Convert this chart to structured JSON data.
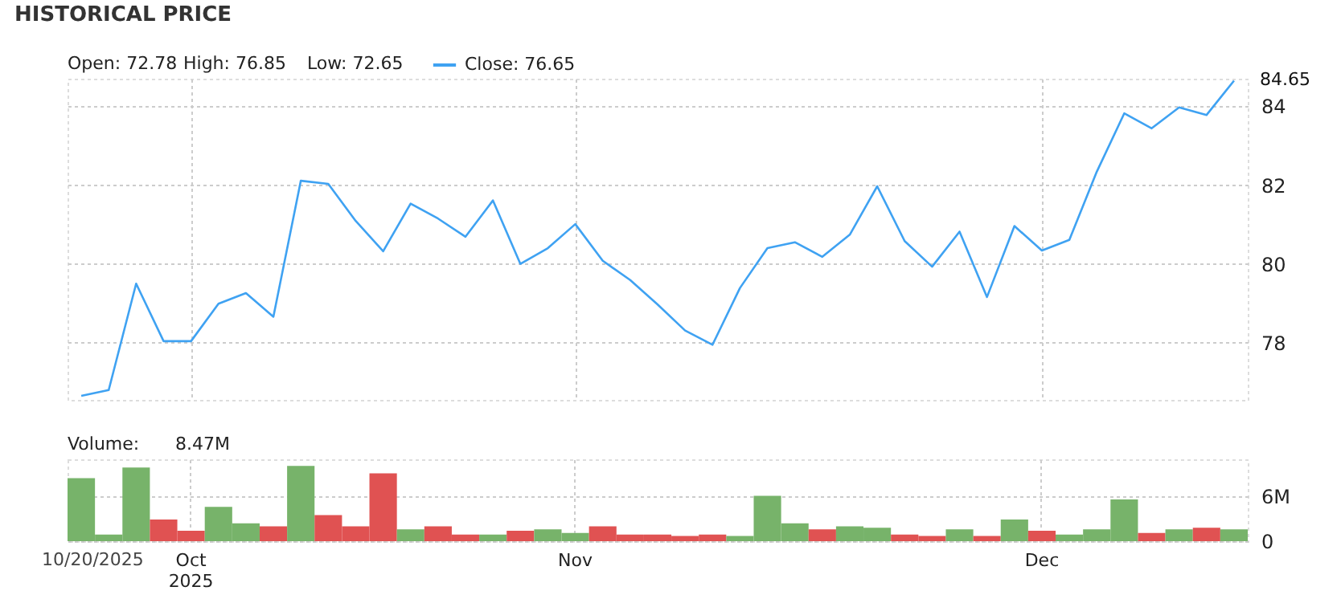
{
  "chart_data": [
    {
      "type": "line",
      "title": "HISTORICAL PRICE",
      "annotations": [
        "Open: 72.78",
        "High: 76.85",
        "Low: 72.65"
      ],
      "categories": [
        null,
        null,
        null,
        null,
        null,
        null,
        null,
        null,
        null,
        null,
        null,
        null,
        null,
        null,
        null,
        null,
        null,
        null,
        null,
        null,
        null,
        null,
        null,
        null,
        null,
        null,
        null,
        null,
        null,
        null,
        null,
        null,
        null,
        null,
        null,
        null,
        null,
        null,
        null,
        null,
        null,
        null,
        null
      ],
      "series": [
        {
          "name": "Close: 76.65",
          "color": "#3fa2f2",
          "values": [
            76.65,
            76.8,
            79.5,
            78.04,
            78.04,
            78.99,
            79.26,
            78.66,
            82.11,
            82.03,
            81.09,
            80.32,
            81.53,
            81.15,
            80.69,
            81.61,
            80.0,
            80.4,
            81.01,
            80.08,
            79.59,
            78.97,
            78.31,
            77.95,
            79.39,
            80.4,
            80.55,
            80.18,
            80.74,
            81.97,
            80.58,
            79.93,
            80.82,
            79.16,
            80.96,
            80.34,
            80.61,
            82.34,
            83.82,
            83.44,
            83.97,
            83.78,
            84.65
          ],
          "value_labels": [
            null,
            null,
            null,
            null,
            null,
            null,
            null,
            null,
            null,
            null,
            null,
            null,
            null,
            null,
            null,
            null,
            null,
            null,
            null,
            null,
            null,
            null,
            null,
            null,
            null,
            null,
            null,
            null,
            null,
            null,
            null,
            null,
            null,
            null,
            null,
            null,
            null,
            null,
            null,
            null,
            null,
            null,
            "84.65"
          ]
        }
      ],
      "ylim": [
        76.55,
        84.7
      ],
      "yticks": [
        78,
        80,
        82,
        84
      ],
      "grid": true,
      "legend": "top left",
      "tick_labels": "y",
      "line_style": "solid"
    },
    {
      "type": "bar",
      "annotations": [
        "Volume:",
        "8.47M",
        "10/20/2025"
      ],
      "categories": [
        null,
        null,
        null,
        null,
        "Oct 2025",
        null,
        null,
        null,
        null,
        null,
        null,
        null,
        null,
        null,
        null,
        null,
        null,
        null,
        "Nov",
        null,
        null,
        null,
        null,
        null,
        null,
        null,
        null,
        null,
        null,
        null,
        null,
        null,
        null,
        null,
        null,
        "Dec",
        null,
        null,
        null,
        null,
        null,
        null,
        null
      ],
      "values": [
        8.47,
        0.9,
        9.9,
        2.9,
        1.4,
        4.6,
        2.4,
        2.0,
        10.1,
        3.5,
        2.0,
        9.1,
        1.6,
        2.0,
        0.9,
        0.9,
        1.4,
        1.6,
        1.1,
        2.0,
        0.9,
        0.9,
        0.7,
        0.9,
        0.7,
        6.1,
        2.4,
        1.6,
        2.0,
        1.8,
        0.9,
        0.7,
        1.6,
        0.7,
        2.9,
        1.4,
        0.9,
        1.6,
        5.6,
        1.1,
        1.6,
        1.8,
        1.6
      ],
      "colors": [
        "#77b36a",
        "#77b36a",
        "#77b36a",
        "#e05252",
        "#e05252",
        "#77b36a",
        "#77b36a",
        "#e05252",
        "#77b36a",
        "#e05252",
        "#e05252",
        "#e05252",
        "#77b36a",
        "#e05252",
        "#e05252",
        "#77b36a",
        "#e05252",
        "#77b36a",
        "#77b36a",
        "#e05252",
        "#e05252",
        "#e05252",
        "#e05252",
        "#e05252",
        "#77b36a",
        "#77b36a",
        "#77b36a",
        "#e05252",
        "#77b36a",
        "#77b36a",
        "#e05252",
        "#e05252",
        "#77b36a",
        "#e05252",
        "#77b36a",
        "#e05252",
        "#77b36a",
        "#77b36a",
        "#77b36a",
        "#e05252",
        "#77b36a",
        "#e05252",
        "#77b36a"
      ],
      "ylim": [
        0,
        11
      ],
      "yticks": [
        0,
        {
          "value": 6,
          "label": "6M"
        }
      ],
      "grid": true
    }
  ]
}
